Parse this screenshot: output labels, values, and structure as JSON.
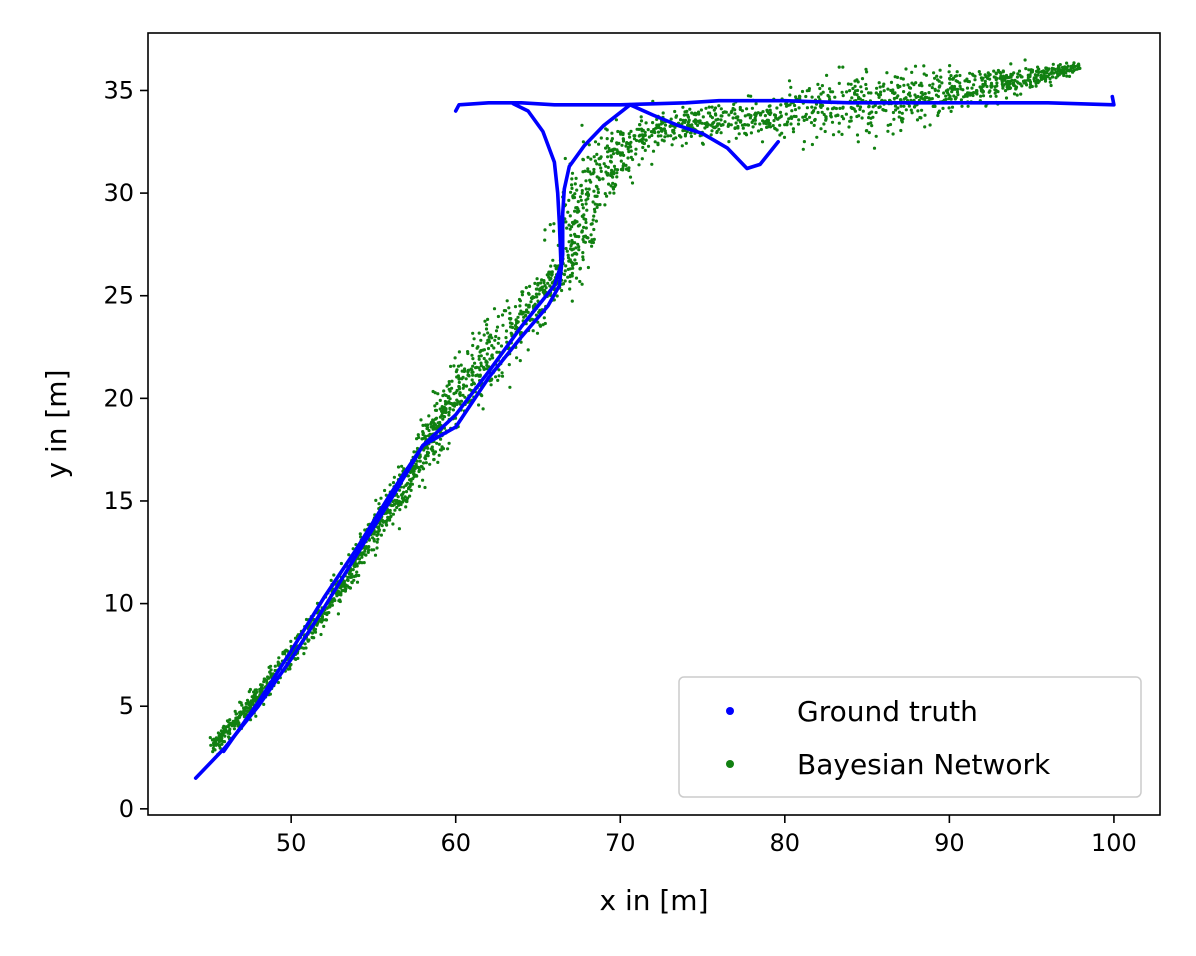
{
  "chart_data": {
    "type": "scatter",
    "title": "",
    "xlabel": "x in [m]",
    "ylabel": "y in [m]",
    "xlim": [
      41.3,
      102.8
    ],
    "ylim": [
      -0.3,
      37.8
    ],
    "xticks": [
      50,
      60,
      70,
      80,
      90,
      100
    ],
    "yticks": [
      0,
      5,
      10,
      15,
      20,
      25,
      30,
      35
    ],
    "grid": false,
    "legend_position": "lower-right",
    "series": [
      {
        "name": "Ground truth",
        "color": "#0000ff",
        "marker": "dense-dots",
        "segments": [
          [
            [
              44.2,
              1.5
            ],
            [
              46.0,
              3.0
            ],
            [
              48.0,
              5.0
            ],
            [
              50.0,
              7.3
            ],
            [
              52.0,
              9.8
            ],
            [
              54.0,
              12.4
            ],
            [
              56.0,
              15.0
            ],
            [
              58.0,
              17.7
            ],
            [
              60.0,
              18.6
            ],
            [
              62.0,
              21.0
            ],
            [
              64.0,
              23.0
            ],
            [
              65.6,
              24.5
            ],
            [
              66.3,
              25.5
            ],
            [
              66.5,
              27.0
            ],
            [
              66.5,
              29.0
            ],
            [
              66.6,
              30.2
            ],
            [
              66.9,
              31.3
            ],
            [
              67.8,
              32.3
            ],
            [
              69.0,
              33.3
            ],
            [
              70.6,
              34.3
            ]
          ],
          [
            [
              45.9,
              2.8
            ],
            [
              48.0,
              5.2
            ],
            [
              50.0,
              7.7
            ],
            [
              52.0,
              10.3
            ],
            [
              54.0,
              12.7
            ],
            [
              56.0,
              15.3
            ],
            [
              58.0,
              17.7
            ],
            [
              60.0,
              19.2
            ],
            [
              62.0,
              21.3
            ],
            [
              64.0,
              23.5
            ],
            [
              66.0,
              25.5
            ],
            [
              66.4,
              26.5
            ],
            [
              66.3,
              28.5
            ],
            [
              66.2,
              30.0
            ],
            [
              66.0,
              31.5
            ],
            [
              65.3,
              33.0
            ],
            [
              64.4,
              34.0
            ],
            [
              63.5,
              34.35
            ]
          ],
          [
            [
              60.0,
              34.0
            ],
            [
              60.2,
              34.3
            ],
            [
              62.0,
              34.4
            ],
            [
              64.0,
              34.4
            ],
            [
              66.0,
              34.3
            ],
            [
              68.0,
              34.3
            ],
            [
              70.0,
              34.3
            ],
            [
              72.0,
              34.35
            ],
            [
              74.0,
              34.4
            ],
            [
              76.0,
              34.5
            ],
            [
              78.0,
              34.5
            ],
            [
              80.0,
              34.5
            ],
            [
              82.0,
              34.45
            ],
            [
              84.0,
              34.4
            ],
            [
              86.0,
              34.4
            ],
            [
              88.0,
              34.4
            ],
            [
              90.0,
              34.4
            ],
            [
              92.0,
              34.4
            ],
            [
              94.0,
              34.4
            ],
            [
              96.0,
              34.4
            ],
            [
              98.0,
              34.35
            ],
            [
              100.0,
              34.3
            ],
            [
              99.9,
              34.7
            ]
          ],
          [
            [
              70.6,
              34.3
            ],
            [
              72.0,
              33.8
            ],
            [
              73.5,
              33.3
            ],
            [
              75.0,
              32.9
            ],
            [
              76.5,
              32.2
            ],
            [
              77.7,
              31.2
            ],
            [
              78.5,
              31.4
            ],
            [
              79.6,
              32.5
            ]
          ]
        ]
      },
      {
        "name": "Bayesian Network",
        "color": "#118011",
        "marker": "dot",
        "trend": [
          [
            45.2,
            3.0
          ],
          [
            47.0,
            4.6
          ],
          [
            49.0,
            6.5
          ],
          [
            51.0,
            8.5
          ],
          [
            53.0,
            10.8
          ],
          [
            55.0,
            13.5
          ],
          [
            57.0,
            15.8
          ],
          [
            59.0,
            18.8
          ],
          [
            61.0,
            21.2
          ],
          [
            63.0,
            22.8
          ],
          [
            65.0,
            24.8
          ],
          [
            66.3,
            25.8
          ],
          [
            67.2,
            27.5
          ],
          [
            67.4,
            29.0
          ],
          [
            68.0,
            30.5
          ],
          [
            69.5,
            31.8
          ],
          [
            71.0,
            32.8
          ],
          [
            73.0,
            33.2
          ],
          [
            75.0,
            33.4
          ],
          [
            77.0,
            33.5
          ],
          [
            79.0,
            33.7
          ],
          [
            81.0,
            34.0
          ],
          [
            83.0,
            34.2
          ],
          [
            85.0,
            34.3
          ],
          [
            87.0,
            34.5
          ],
          [
            89.0,
            34.8
          ],
          [
            91.0,
            35.0
          ],
          [
            93.0,
            35.3
          ],
          [
            95.0,
            35.6
          ],
          [
            97.9,
            36.2
          ]
        ],
        "spread": [
          [
            45.2,
            0.35
          ],
          [
            55.0,
            0.5
          ],
          [
            60.0,
            0.9
          ],
          [
            63.0,
            1.2
          ],
          [
            66.0,
            0.8
          ],
          [
            68.0,
            1.4
          ],
          [
            72.0,
            0.7
          ],
          [
            77.0,
            0.8
          ],
          [
            82.0,
            1.2
          ],
          [
            86.0,
            1.3
          ],
          [
            92.0,
            0.8
          ],
          [
            97.9,
            0.2
          ]
        ],
        "point_count": 2800
      }
    ]
  }
}
